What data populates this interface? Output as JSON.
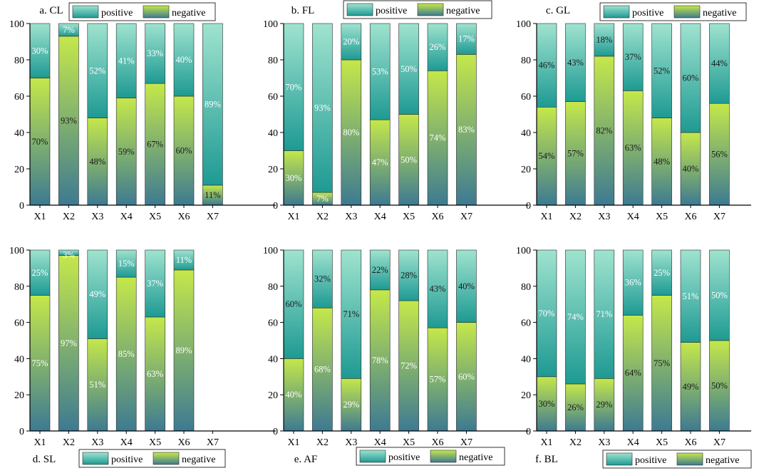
{
  "colors": {
    "positive_top": "#9fe3cf",
    "positive_bottom": "#1e9a93",
    "negative_top": "#c5e84a",
    "negative_bottom": "#3d7a92",
    "axis": "#000000"
  },
  "chart_data": [
    {
      "type": "bar",
      "stacked": true,
      "title": "a. CL",
      "categories": [
        "X1",
        "X2",
        "X3",
        "X4",
        "X5",
        "X6",
        "X7"
      ],
      "series": [
        {
          "name": "positive",
          "values": [
            30,
            7,
            52,
            41,
            33,
            40,
            89
          ],
          "labels": [
            "30%",
            "7%",
            "52%",
            "41%",
            "33%",
            "40%",
            "89%"
          ]
        },
        {
          "name": "negative",
          "values": [
            70,
            93,
            48,
            59,
            67,
            60,
            11
          ],
          "labels": [
            "70%",
            "93%",
            "48%",
            "59%",
            "67%",
            "60%",
            "11%"
          ]
        }
      ],
      "legend": [
        "positive",
        "negative"
      ],
      "legend_position": "top",
      "yticks": [
        "0",
        "20",
        "40",
        "60",
        "80",
        "100"
      ],
      "ylim": [
        0,
        100
      ],
      "xlabel": "",
      "ylabel": ""
    },
    {
      "type": "bar",
      "stacked": true,
      "title": "b. FL",
      "categories": [
        "X1",
        "X2",
        "X3",
        "X4",
        "X5",
        "X6",
        "X7"
      ],
      "series": [
        {
          "name": "positive",
          "values": [
            70,
            93,
            20,
            53,
            50,
            26,
            17
          ],
          "labels": [
            "70%",
            "93%",
            "20%",
            "53%",
            "50%",
            "26%",
            "17%"
          ]
        },
        {
          "name": "negative",
          "values": [
            30,
            7,
            80,
            47,
            50,
            74,
            83
          ],
          "labels": [
            "30%",
            "7%",
            "80%",
            "47%",
            "50%",
            "74%",
            "83%"
          ]
        }
      ],
      "legend": [
        "positive",
        "negative"
      ],
      "legend_position": "top",
      "yticks": [
        "0",
        "20",
        "40",
        "60",
        "80",
        "100"
      ],
      "ylim": [
        0,
        100
      ],
      "xlabel": "",
      "ylabel": ""
    },
    {
      "type": "bar",
      "stacked": true,
      "title": "c. GL",
      "categories": [
        "X1",
        "X2",
        "X3",
        "X4",
        "X5",
        "X6",
        "X7"
      ],
      "series": [
        {
          "name": "positive",
          "values": [
            46,
            43,
            18,
            37,
            52,
            60,
            44
          ],
          "labels": [
            "46%",
            "43%",
            "18%",
            "37%",
            "52%",
            "60%",
            "44%"
          ]
        },
        {
          "name": "negative",
          "values": [
            54,
            57,
            82,
            63,
            48,
            40,
            56
          ],
          "labels": [
            "54%",
            "57%",
            "82%",
            "63%",
            "48%",
            "40%",
            "56%"
          ]
        }
      ],
      "legend": [
        "positive",
        "negative"
      ],
      "legend_position": "top",
      "yticks": [
        "0",
        "20",
        "40",
        "60",
        "80",
        "100"
      ],
      "ylim": [
        0,
        100
      ],
      "xlabel": "",
      "ylabel": ""
    },
    {
      "type": "bar",
      "stacked": true,
      "title": "d. SL",
      "categories": [
        "X1",
        "X2",
        "X3",
        "X4",
        "X5",
        "X6",
        "X7"
      ],
      "series": [
        {
          "name": "positive",
          "values": [
            25,
            3,
            49,
            15,
            37,
            11,
            null
          ],
          "labels": [
            "25%",
            "3%",
            "49%",
            "15%",
            "37%",
            "11%",
            ""
          ]
        },
        {
          "name": "negative",
          "values": [
            75,
            97,
            51,
            85,
            63,
            89,
            null
          ],
          "labels": [
            "75%",
            "97%",
            "51%",
            "85%",
            "63%",
            "89%",
            ""
          ]
        }
      ],
      "legend": [
        "positive",
        "negative"
      ],
      "legend_position": "bottom",
      "yticks": [
        "0",
        "20",
        "40",
        "60",
        "80",
        "100"
      ],
      "ylim": [
        0,
        100
      ],
      "xlabel": "",
      "ylabel": ""
    },
    {
      "type": "bar",
      "stacked": true,
      "title": "e. AF",
      "categories": [
        "X1",
        "X2",
        "X3",
        "X4",
        "X5",
        "X6",
        "X7"
      ],
      "series": [
        {
          "name": "positive",
          "values": [
            60,
            32,
            71,
            22,
            28,
            43,
            40
          ],
          "labels": [
            "60%",
            "32%",
            "71%",
            "22%",
            "28%",
            "43%",
            "40%"
          ]
        },
        {
          "name": "negative",
          "values": [
            40,
            68,
            29,
            78,
            72,
            57,
            60
          ],
          "labels": [
            "40%",
            "68%",
            "29%",
            "78%",
            "72%",
            "57%",
            "60%"
          ]
        }
      ],
      "legend": [
        "positive",
        "negative"
      ],
      "legend_position": "bottom",
      "yticks": [
        "0",
        "20",
        "40",
        "60",
        "80",
        "100"
      ],
      "ylim": [
        0,
        100
      ],
      "xlabel": "",
      "ylabel": ""
    },
    {
      "type": "bar",
      "stacked": true,
      "title": "f. BL",
      "categories": [
        "X1",
        "X2",
        "X3",
        "X4",
        "X5",
        "X6",
        "X7"
      ],
      "series": [
        {
          "name": "positive",
          "values": [
            70,
            74,
            71,
            36,
            25,
            51,
            50
          ],
          "labels": [
            "70%",
            "74%",
            "71%",
            "36%",
            "25%",
            "51%",
            "50%"
          ]
        },
        {
          "name": "negative",
          "values": [
            30,
            26,
            29,
            64,
            75,
            49,
            50
          ],
          "labels": [
            "30%",
            "26%",
            "29%",
            "64%",
            "75%",
            "49%",
            "50%"
          ]
        }
      ],
      "legend": [
        "positive",
        "negative"
      ],
      "legend_position": "bottom",
      "yticks": [
        "0",
        "20",
        "40",
        "60",
        "80",
        "100"
      ],
      "ylim": [
        0,
        100
      ],
      "xlabel": "",
      "ylabel": ""
    }
  ]
}
